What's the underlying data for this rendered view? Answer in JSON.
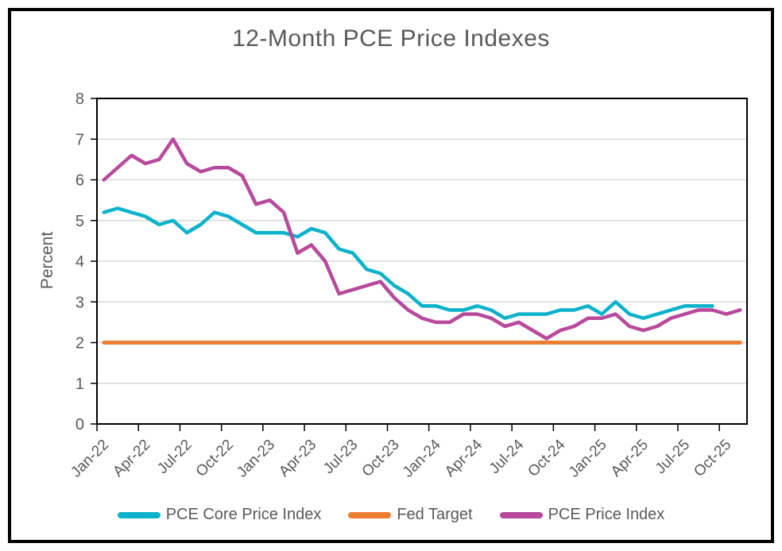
{
  "title": "12-Month PCE Price Indexes",
  "y_axis": {
    "label": "Percent",
    "ticks": [
      0,
      1,
      2,
      3,
      4,
      5,
      6,
      7,
      8
    ]
  },
  "x_axis": {
    "tick_labels": [
      "Jan-22",
      "Apr-22",
      "Jul-22",
      "Oct-22",
      "Jan-23",
      "Apr-23",
      "Jul-23",
      "Oct-23",
      "Jan-24",
      "Apr-24",
      "Jul-24",
      "Oct-24",
      "Jan-25",
      "Apr-25",
      "Jul-25",
      "Oct-25"
    ]
  },
  "colors": {
    "text": "#595959",
    "gridline": "#D9D9D9",
    "axis": "#000000",
    "background": "#FFFFFF",
    "core_line": "#0CB2CB",
    "fed_target_line": "#ED7D31",
    "pce_line": "#B8499C"
  },
  "chart_data": {
    "type": "line",
    "title": "12-Month PCE Price Indexes",
    "xlabel": "",
    "ylabel": "Percent",
    "ylim": [
      0,
      8
    ],
    "grid": true,
    "legend_position": "bottom",
    "x": [
      "Jan-22",
      "Feb-22",
      "Mar-22",
      "Apr-22",
      "May-22",
      "Jun-22",
      "Jul-22",
      "Aug-22",
      "Sep-22",
      "Oct-22",
      "Nov-22",
      "Dec-22",
      "Jan-23",
      "Feb-23",
      "Mar-23",
      "Apr-23",
      "May-23",
      "Jun-23",
      "Jul-23",
      "Aug-23",
      "Sep-23",
      "Oct-23",
      "Nov-23",
      "Dec-23",
      "Jan-24",
      "Feb-24",
      "Mar-24",
      "Apr-24",
      "May-24",
      "Jun-24",
      "Jul-24",
      "Aug-24",
      "Sep-24",
      "Oct-24",
      "Nov-24",
      "Dec-24",
      "Jan-25",
      "Feb-25",
      "Mar-25",
      "Apr-25",
      "May-25",
      "Jun-25",
      "Jul-25",
      "Aug-25",
      "Sep-25",
      "Oct-25",
      "Nov-25"
    ],
    "series": [
      {
        "name": "PCE Core Price Index",
        "color": "#0CB2CB",
        "values": [
          5.2,
          5.3,
          5.2,
          5.1,
          4.9,
          5.0,
          4.7,
          4.9,
          5.2,
          5.1,
          4.9,
          4.7,
          4.7,
          4.7,
          4.6,
          4.8,
          4.7,
          4.3,
          4.2,
          3.8,
          3.7,
          3.4,
          3.2,
          2.9,
          2.9,
          2.8,
          2.8,
          2.9,
          2.8,
          2.6,
          2.7,
          2.7,
          2.7,
          2.8,
          2.8,
          2.9,
          2.7,
          3.0,
          2.7,
          2.6,
          2.7,
          2.8,
          2.9,
          2.9,
          2.9,
          null,
          null
        ]
      },
      {
        "name": "Fed Target",
        "color": "#ED7D31",
        "values": [
          2,
          2,
          2,
          2,
          2,
          2,
          2,
          2,
          2,
          2,
          2,
          2,
          2,
          2,
          2,
          2,
          2,
          2,
          2,
          2,
          2,
          2,
          2,
          2,
          2,
          2,
          2,
          2,
          2,
          2,
          2,
          2,
          2,
          2,
          2,
          2,
          2,
          2,
          2,
          2,
          2,
          2,
          2,
          2,
          2,
          2,
          2
        ]
      },
      {
        "name": "PCE Price Index",
        "color": "#B8499C",
        "values": [
          6.0,
          6.3,
          6.6,
          6.4,
          6.5,
          7.0,
          6.4,
          6.2,
          6.3,
          6.3,
          6.1,
          5.4,
          5.5,
          5.2,
          4.2,
          4.4,
          4.0,
          3.2,
          3.3,
          3.4,
          3.5,
          3.1,
          2.8,
          2.6,
          2.5,
          2.5,
          2.7,
          2.7,
          2.6,
          2.4,
          2.5,
          2.3,
          2.1,
          2.3,
          2.4,
          2.6,
          2.6,
          2.7,
          2.4,
          2.3,
          2.4,
          2.6,
          2.7,
          2.8,
          2.8,
          2.7,
          2.8
        ]
      }
    ]
  }
}
